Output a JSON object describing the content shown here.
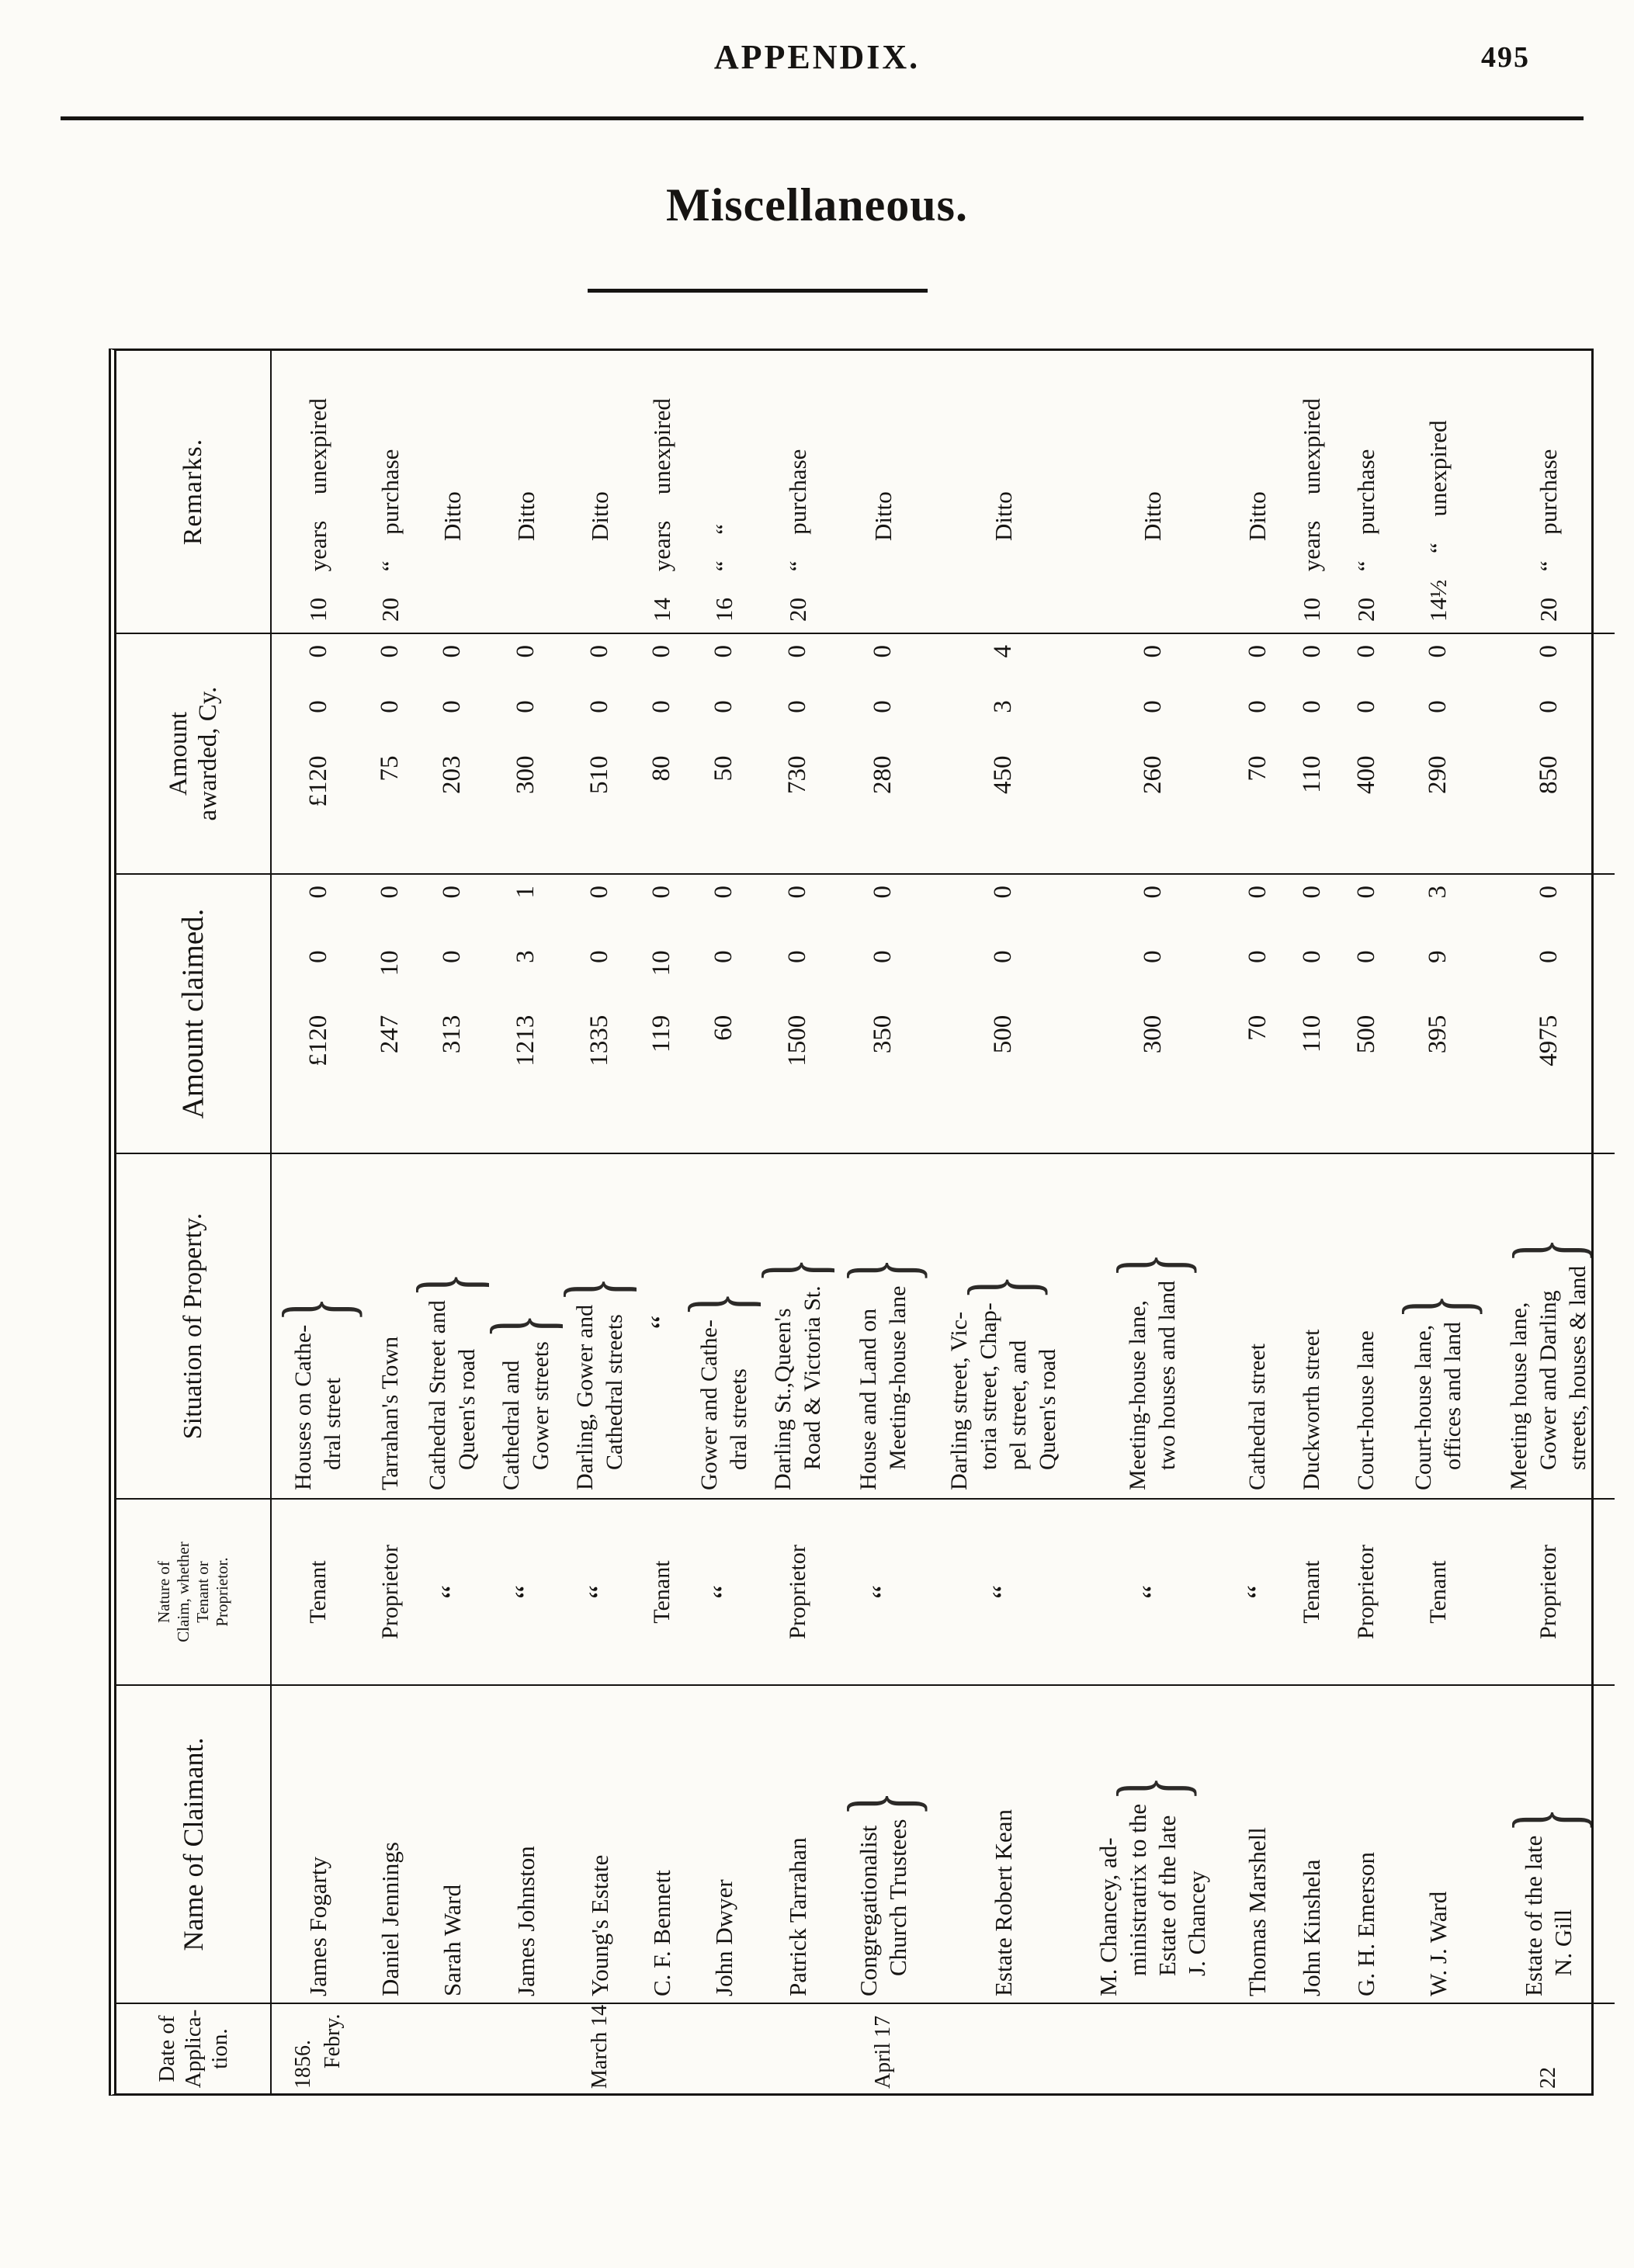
{
  "page": {
    "header": "APPENDIX.",
    "page_number": "495",
    "title": "Miscellaneous.",
    "ink_color": "#161412",
    "paper_color": "#fcfbf7"
  },
  "table": {
    "orientation": "rotated-90-ccw",
    "brace_glyph": "}",
    "columns": {
      "date": [
        "Date of",
        "Applica-",
        "tion."
      ],
      "name": "Name of Claimant.",
      "nature": [
        "Nature of",
        "Claim, whether",
        "Tenant or",
        "Proprietor."
      ],
      "situation": "Situation of Property.",
      "claimed": "Amount claimed.",
      "awarded": [
        "Amount",
        "awarded, Cy."
      ],
      "remarks": "Remarks."
    },
    "rows": [
      {
        "date": [
          "1856.",
          "Febry."
        ],
        "name": [
          "James Fogarty"
        ],
        "nature": "Tenant",
        "situation": [
          "Houses on Cathe-",
          "dral street"
        ],
        "claimed": [
          "£120",
          "0",
          "0"
        ],
        "awarded": [
          "£120",
          "0",
          "0"
        ],
        "remarks": "10 years unexpired"
      },
      {
        "date": [],
        "name": [
          "Daniel Jennings"
        ],
        "nature": "Proprietor",
        "situation": [
          "Tarrahan's Town"
        ],
        "claimed": [
          "247",
          "10",
          "0"
        ],
        "awarded": [
          "75",
          "0",
          "0"
        ],
        "remarks": "20 “ purchase"
      },
      {
        "date": [],
        "name": [
          "Sarah Ward"
        ],
        "nature": "“",
        "situation": [
          "Cathedral Street and",
          "Queen's road"
        ],
        "claimed": [
          "313",
          "0",
          "0"
        ],
        "awarded": [
          "203",
          "0",
          "0"
        ],
        "remarks": "Ditto"
      },
      {
        "date": [],
        "name": [
          "James Johnston"
        ],
        "nature": "“",
        "situation": [
          "Cathedral and",
          "Gower streets"
        ],
        "claimed": [
          "1213",
          "3",
          "1"
        ],
        "awarded": [
          "300",
          "0",
          "0"
        ],
        "remarks": "Ditto"
      },
      {
        "date": [
          "March 14"
        ],
        "name": [
          "Young's Estate"
        ],
        "nature": "“",
        "situation": [
          "Darling, Gower and",
          "Cathedral streets"
        ],
        "claimed": [
          "1335",
          "0",
          "0"
        ],
        "awarded": [
          "510",
          "0",
          "0"
        ],
        "remarks": "Ditto"
      },
      {
        "date": [],
        "name": [
          "C. F. Bennett"
        ],
        "nature": "Tenant",
        "situation": [
          "“"
        ],
        "claimed": [
          "119",
          "10",
          "0"
        ],
        "awarded": [
          "80",
          "0",
          "0"
        ],
        "remarks": "14 years unexpired"
      },
      {
        "date": [],
        "name": [
          "John Dwyer"
        ],
        "nature": "“",
        "situation": [
          "Gower and Cathe-",
          "dral streets"
        ],
        "claimed": [
          "60",
          "0",
          "0"
        ],
        "awarded": [
          "50",
          "0",
          "0"
        ],
        "remarks": "16 “ “"
      },
      {
        "date": [],
        "name": [
          "Patrick Tarrahan"
        ],
        "nature": "Proprietor",
        "situation": [
          "Darling St.,Queen's",
          "Road & Victoria St."
        ],
        "claimed": [
          "1500",
          "0",
          "0"
        ],
        "awarded": [
          "730",
          "0",
          "0"
        ],
        "remarks": "20 “ purchase"
      },
      {
        "date": [
          "April 17"
        ],
        "name": [
          "Congregationalist",
          "Church Trustees"
        ],
        "nature": "“",
        "situation": [
          "House and Land on",
          "Meeting-house lane"
        ],
        "claimed": [
          "350",
          "0",
          "0"
        ],
        "awarded": [
          "280",
          "0",
          "0"
        ],
        "remarks": "Ditto"
      },
      {
        "date": [],
        "name": [
          "Estate Robert Kean"
        ],
        "nature": "“",
        "situation": [
          "Darling street, Vic-",
          "toria street, Chap-",
          "pel street, and",
          "Queen's road"
        ],
        "claimed": [
          "500",
          "0",
          "0"
        ],
        "awarded": [
          "450",
          "3",
          "4"
        ],
        "remarks": "Ditto"
      },
      {
        "date": [],
        "name": [
          "M. Chancey, ad-",
          "ministratrix to the",
          "Estate of the late",
          "J. Chancey"
        ],
        "nature": "“",
        "situation": [
          "Meeting-house lane,",
          "two houses and land"
        ],
        "claimed": [
          "300",
          "0",
          "0"
        ],
        "awarded": [
          "260",
          "0",
          "0"
        ],
        "remarks": "Ditto"
      },
      {
        "date": [],
        "name": [
          "Thomas Marshell"
        ],
        "nature": "“",
        "situation": [
          "Cathedral street"
        ],
        "claimed": [
          "70",
          "0",
          "0"
        ],
        "awarded": [
          "70",
          "0",
          "0"
        ],
        "remarks": "Ditto"
      },
      {
        "date": [],
        "name": [
          "John Kinshela"
        ],
        "nature": "Tenant",
        "situation": [
          "Duckworth street"
        ],
        "claimed": [
          "110",
          "0",
          "0"
        ],
        "awarded": [
          "110",
          "0",
          "0"
        ],
        "remarks": "10 years unexpired"
      },
      {
        "date": [],
        "name": [
          "G. H. Emerson"
        ],
        "nature": "Proprietor",
        "situation": [
          "Court-house lane"
        ],
        "claimed": [
          "500",
          "0",
          "0"
        ],
        "awarded": [
          "400",
          "0",
          "0"
        ],
        "remarks": "20 “ purchase"
      },
      {
        "date": [],
        "name": [
          "W. J. Ward"
        ],
        "nature": "Tenant",
        "situation": [
          "Court-house lane,",
          "offices and land"
        ],
        "claimed": [
          "395",
          "9",
          "3"
        ],
        "awarded": [
          "290",
          "0",
          "0"
        ],
        "remarks": "14½ “ unexpired"
      },
      {
        "date": [
          "22"
        ],
        "name": [
          "Estate of the late",
          "N. Gill"
        ],
        "nature": "Proprietor",
        "situation": [
          "Meeting house lane,",
          "Gower and Darling",
          "streets, houses & land"
        ],
        "claimed": [
          "4975",
          "0",
          "0"
        ],
        "awarded": [
          "850",
          "0",
          "0"
        ],
        "remarks": "20 “ purchase"
      }
    ]
  }
}
